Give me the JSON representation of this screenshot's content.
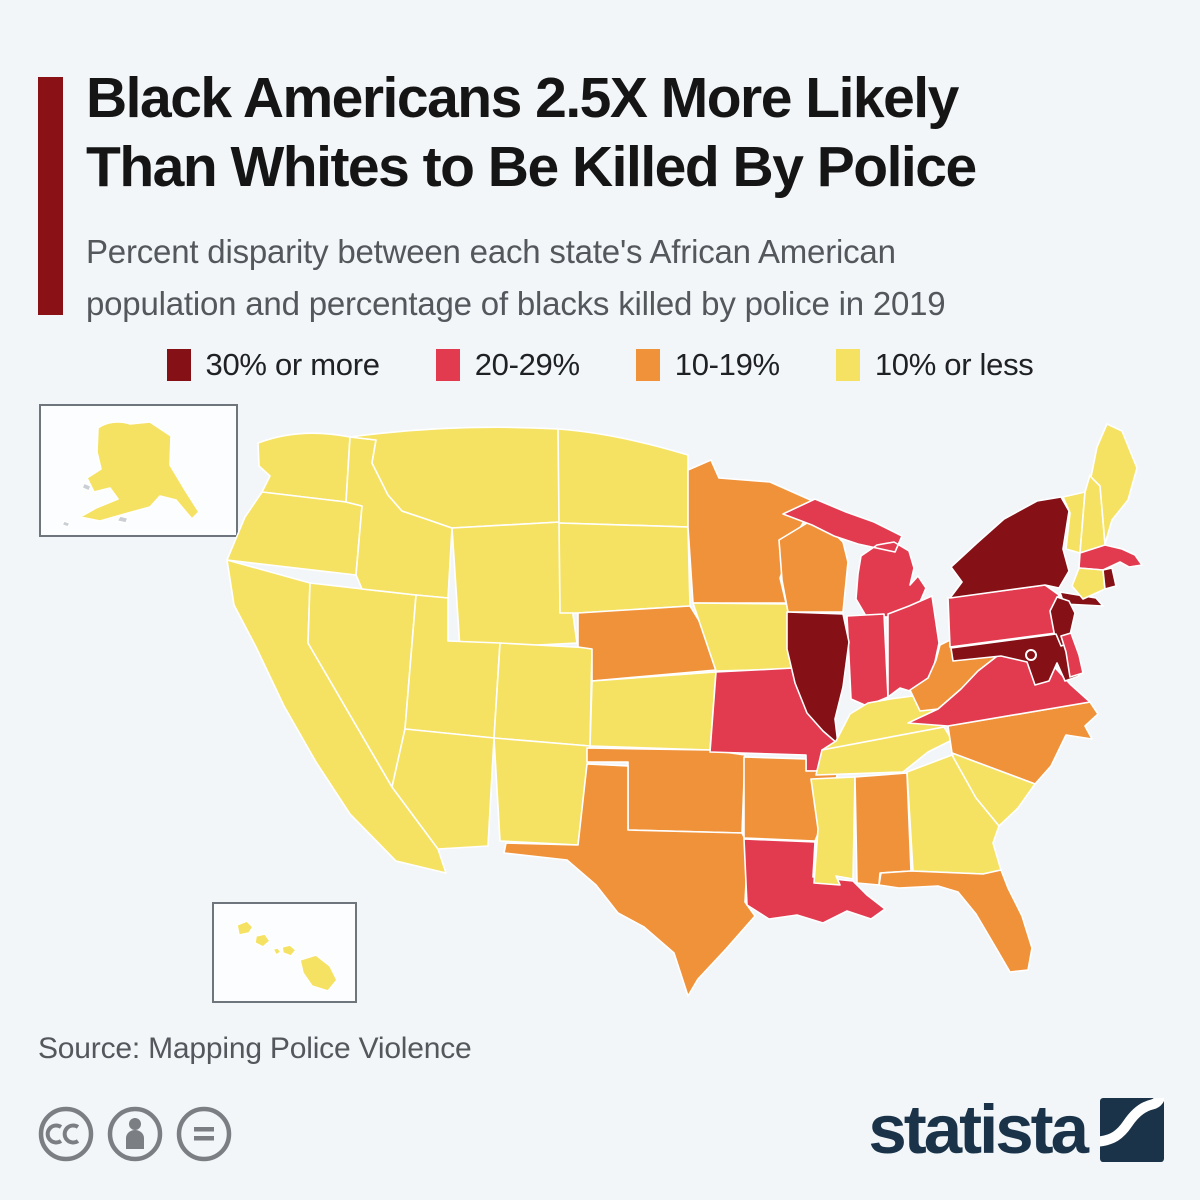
{
  "page": {
    "background": "#f2f6f9"
  },
  "header": {
    "accent_bar_color": "#8a1116",
    "title": [
      "Black Americans 2.5X More Likely",
      "Than Whites to Be Killed By Police"
    ],
    "subtitle": [
      "Percent disparity between each state's African American",
      "population and percentage of blacks killed by police in 2019"
    ]
  },
  "chart_data": {
    "type": "heatmap",
    "subtype": "us-choropleth-map",
    "title": "Black Americans 2.5X More Likely Than Whites to Be Killed By Police",
    "subtitle": "Percent disparity between each state's African American population and percentage of blacks killed by police in 2019",
    "legend_position": "top",
    "bins": [
      {
        "key": "ge30",
        "label": "30% or more",
        "color": "#851117"
      },
      {
        "key": "r20_29",
        "label": "20-29%",
        "color": "#e23b50"
      },
      {
        "key": "r10_19",
        "label": "10-19%",
        "color": "#f0923a"
      },
      {
        "key": "le10",
        "label": "10% or less",
        "color": "#f5e263"
      }
    ],
    "states": {
      "WA": "le10",
      "OR": "le10",
      "CA": "le10",
      "NV": "le10",
      "ID": "le10",
      "MT": "le10",
      "WY": "le10",
      "UT": "le10",
      "CO": "le10",
      "AZ": "le10",
      "NM": "le10",
      "ND": "le10",
      "SD": "le10",
      "KS": "le10",
      "IA": "le10",
      "KY": "le10",
      "TN": "le10",
      "MS": "le10",
      "GA": "le10",
      "SC": "le10",
      "CT": "le10",
      "VT": "le10",
      "NH": "le10",
      "ME": "le10",
      "AK": "le10",
      "HI": "le10",
      "MN": "r10_19",
      "WI": "r10_19",
      "NE": "r10_19",
      "OK": "r10_19",
      "TX": "r10_19",
      "AR": "r10_19",
      "AL": "r10_19",
      "WV": "r10_19",
      "NC": "r10_19",
      "FL": "r10_19",
      "MO": "r20_29",
      "MI": "r20_29",
      "IN": "r20_29",
      "OH": "r20_29",
      "PA": "r20_29",
      "VA": "r20_29",
      "MA": "r20_29",
      "LA": "r20_29",
      "DE": "r20_29",
      "IL": "ge30",
      "NY": "ge30",
      "NJ": "ge30",
      "MD": "ge30",
      "RI": "ge30",
      "DC": "ge30"
    }
  },
  "map": {
    "state_stroke": "#ffffff",
    "inset_background": "#fbfdfe",
    "inset_border": "#6e757c"
  },
  "footer": {
    "source": "Source: Mapping Police Violence",
    "license_icon_color": "#7b7f83",
    "brand_wordmark": "statista",
    "brand_color": "#1b3349"
  }
}
